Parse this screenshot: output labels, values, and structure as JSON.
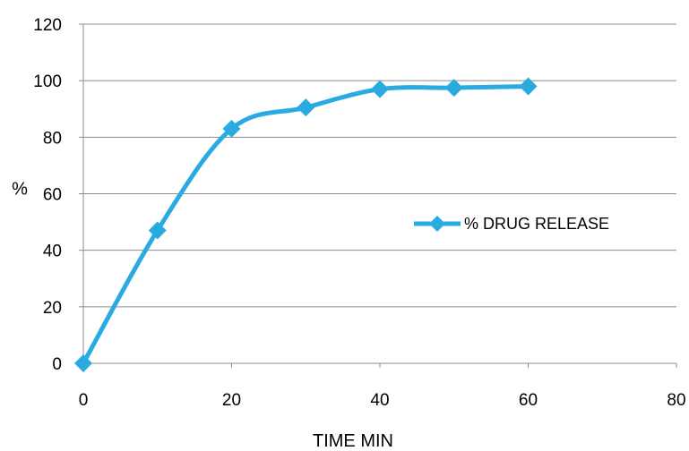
{
  "chart_data": {
    "type": "line",
    "title": "",
    "xlabel": "TIME MIN",
    "ylabel": "%",
    "xlim": [
      0,
      80
    ],
    "ylim": [
      0,
      120
    ],
    "x_ticks": [
      0,
      20,
      40,
      60,
      80
    ],
    "y_ticks": [
      0,
      20,
      40,
      60,
      80,
      100,
      120
    ],
    "grid": "horizontal",
    "legend_position": "right",
    "series": [
      {
        "name": "% DRUG RELEASE",
        "color": "#29ABE2",
        "marker": "diamond",
        "smooth": true,
        "x": [
          0,
          10,
          20,
          30,
          40,
          50,
          60
        ],
        "y": [
          0,
          47,
          83,
          90.5,
          97,
          97.5,
          98
        ]
      }
    ]
  }
}
